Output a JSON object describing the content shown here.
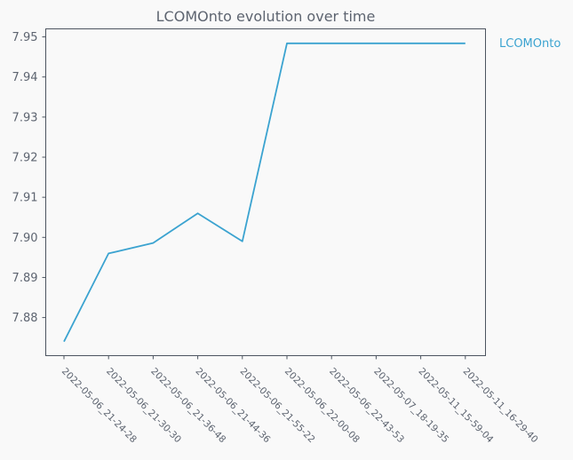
{
  "chart_data": {
    "type": "line",
    "title": "LCOMOnto evolution over time",
    "xlabel": "",
    "ylabel": "",
    "categories": [
      "2022-05-06_21-24-28",
      "2022-05-06_21-30-30",
      "2022-05-06_21-36-48",
      "2022-05-06_21-44-36",
      "2022-05-06_21-55-22",
      "2022-05-06_22-00-08",
      "2022-05-06_22-43-53",
      "2022-05-07_18-19-35",
      "2022-05-11_15-59-04",
      "2022-05-11_16-29-40"
    ],
    "series": [
      {
        "name": "LCOMOnto",
        "color": "#3ba3d0",
        "values": [
          7.874,
          7.896,
          7.8986,
          7.906,
          7.899,
          7.9484,
          7.9484,
          7.9484,
          7.9484,
          7.9484
        ]
      }
    ],
    "ylim": [
      7.8705,
      7.952
    ],
    "yticks": [
      "7.88",
      "7.89",
      "7.90",
      "7.91",
      "7.92",
      "7.93",
      "7.94",
      "7.95"
    ],
    "grid": false,
    "legend": "right"
  }
}
